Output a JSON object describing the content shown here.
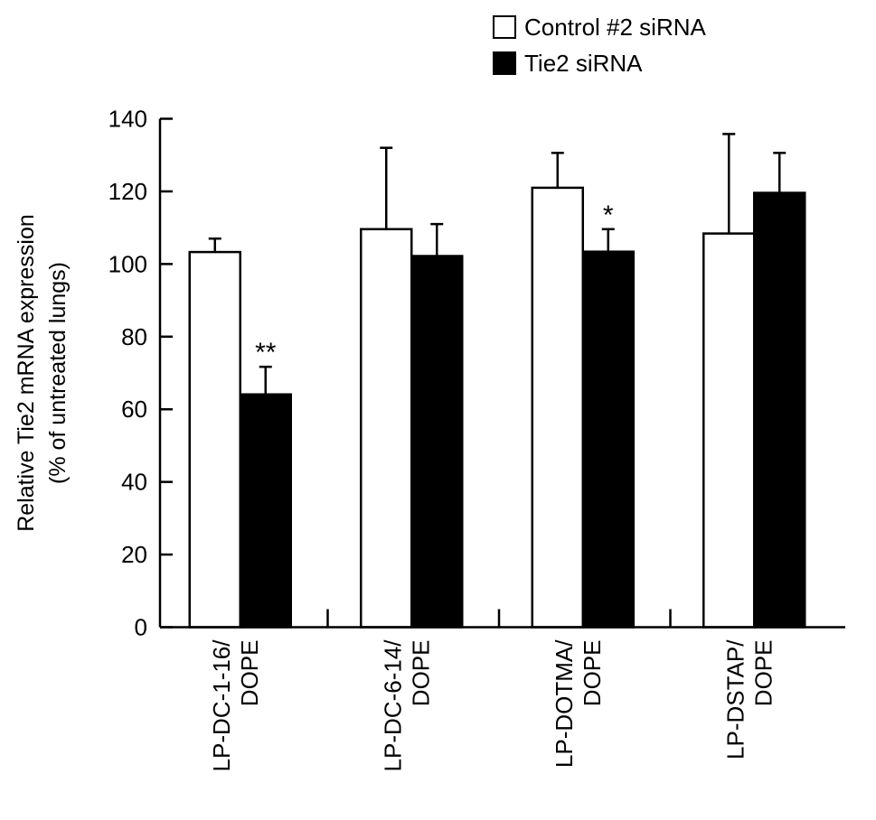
{
  "chart_data": {
    "type": "bar",
    "title": "",
    "ylabel": [
      "Relative Tie2 mRNA expression",
      "(% of untreated lungs)"
    ],
    "xlabel": "",
    "ylim": [
      0,
      140
    ],
    "yticks": [
      0,
      20,
      40,
      60,
      80,
      100,
      120,
      140
    ],
    "grid": false,
    "legend_placement": "top-right",
    "categories": [
      [
        "LP-DC-1-16/",
        "DOPE"
      ],
      [
        "LP-DC-6-14/",
        "DOPE"
      ],
      [
        "LP-DOTMA/",
        "DOPE"
      ],
      [
        "LP-DSTAP/",
        "DOPE"
      ]
    ],
    "series": [
      {
        "name": "Control #2 siRNA",
        "color": "#ffffff",
        "values": [
          103.3,
          109.6,
          121.0,
          108.4
        ],
        "error_upper": [
          107.0,
          132.0,
          130.6,
          135.8
        ]
      },
      {
        "name": "Tie2 siRNA",
        "color": "#000000",
        "values": [
          64.1,
          102.2,
          103.4,
          119.6
        ],
        "error_upper": [
          71.7,
          111.0,
          109.6,
          130.6
        ]
      }
    ],
    "annotations": [
      {
        "series": 1,
        "category": 0,
        "text": "**"
      },
      {
        "series": 1,
        "category": 2,
        "text": "*"
      }
    ]
  }
}
